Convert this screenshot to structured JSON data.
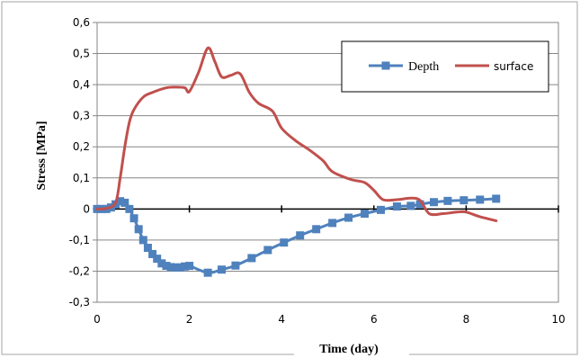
{
  "chart_data": {
    "type": "line",
    "xlabel": "Time (day)",
    "ylabel": "Stress [MPa]",
    "xlim": [
      0,
      10
    ],
    "ylim": [
      -0.3,
      0.6
    ],
    "x_ticks": [
      0,
      2,
      4,
      6,
      8,
      10
    ],
    "x_tick_labels": [
      "0",
      "2",
      "4",
      "6",
      "8",
      "10"
    ],
    "y_ticks": [
      0.6,
      0.5,
      0.4,
      0.3,
      0.2,
      0.1,
      0,
      -0.1,
      -0.2,
      -0.3
    ],
    "y_tick_labels": [
      "0,6",
      "0,5",
      "0,4",
      "0,3",
      "0,2",
      "0,1",
      "0",
      "-0,1",
      "-0,2",
      "-0,3"
    ],
    "grid": "horizontal",
    "legend_position": "top-right",
    "series": [
      {
        "name": "Depth",
        "color": "#4f81bd",
        "marker": "square",
        "x": [
          0,
          0.1,
          0.2,
          0.3,
          0.4,
          0.5,
          0.6,
          0.7,
          0.8,
          0.9,
          1.0,
          1.1,
          1.2,
          1.3,
          1.4,
          1.5,
          1.6,
          1.7,
          1.8,
          1.9,
          2.0,
          2.4,
          2.7,
          3.0,
          3.35,
          3.7,
          4.05,
          4.4,
          4.75,
          5.1,
          5.45,
          5.8,
          6.15,
          6.5,
          6.8,
          7.0,
          7.3,
          7.6,
          7.95,
          8.3,
          8.65
        ],
        "y": [
          0,
          0,
          0,
          0.005,
          0.015,
          0.025,
          0.02,
          0,
          -0.03,
          -0.065,
          -0.1,
          -0.125,
          -0.145,
          -0.16,
          -0.175,
          -0.183,
          -0.187,
          -0.188,
          -0.188,
          -0.185,
          -0.183,
          -0.205,
          -0.195,
          -0.182,
          -0.158,
          -0.132,
          -0.108,
          -0.085,
          -0.065,
          -0.045,
          -0.028,
          -0.015,
          -0.003,
          0.008,
          0.01,
          0.015,
          0.022,
          0.026,
          0.028,
          0.03,
          0.033
        ]
      },
      {
        "name": "surface",
        "color": "#c0504d",
        "marker": "none",
        "x": [
          0,
          0.2,
          0.4,
          0.5,
          0.6,
          0.7,
          0.8,
          1.0,
          1.2,
          1.5,
          1.7,
          1.9,
          2.0,
          2.2,
          2.4,
          2.55,
          2.7,
          2.9,
          3.1,
          3.3,
          3.5,
          3.8,
          4.0,
          4.3,
          4.6,
          4.9,
          5.1,
          5.5,
          5.8,
          6.0,
          6.2,
          6.5,
          6.8,
          7.0,
          7.2,
          7.5,
          7.8,
          8.0,
          8.3,
          8.65
        ],
        "y": [
          0,
          0.002,
          0.02,
          0.1,
          0.2,
          0.28,
          0.32,
          0.36,
          0.375,
          0.39,
          0.392,
          0.39,
          0.378,
          0.44,
          0.518,
          0.475,
          0.425,
          0.43,
          0.435,
          0.375,
          0.34,
          0.315,
          0.26,
          0.22,
          0.19,
          0.155,
          0.12,
          0.095,
          0.085,
          0.06,
          0.03,
          0.03,
          0.035,
          0.028,
          -0.015,
          -0.015,
          -0.01,
          -0.01,
          -0.025,
          -0.038
        ]
      }
    ]
  }
}
